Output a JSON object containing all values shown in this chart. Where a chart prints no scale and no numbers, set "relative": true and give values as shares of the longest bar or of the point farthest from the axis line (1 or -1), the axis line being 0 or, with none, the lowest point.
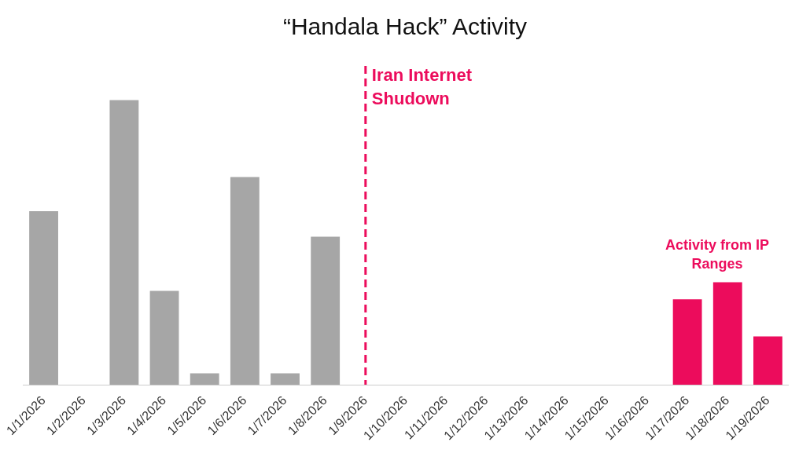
{
  "chart_data": {
    "type": "bar",
    "title": "“Handala Hack” Activity",
    "relative": true,
    "categories": [
      "1/1/2026",
      "1/2/2026",
      "1/3/2026",
      "1/4/2026",
      "1/5/2026",
      "1/6/2026",
      "1/7/2026",
      "1/8/2026",
      "1/9/2026",
      "1/10/2026",
      "1/11/2026",
      "1/12/2026",
      "1/13/2026",
      "1/14/2026",
      "1/15/2026",
      "1/16/2026",
      "1/17/2026",
      "1/18/2026",
      "1/19/2026"
    ],
    "values": [
      0.61,
      0,
      1,
      0.33,
      0.04,
      0.73,
      0.04,
      0.52,
      0,
      0,
      0,
      0,
      0,
      0,
      0,
      0,
      0.3,
      0.36,
      0.17
    ],
    "colors": [
      "#a6a6a6",
      "#a6a6a6",
      "#a6a6a6",
      "#a6a6a6",
      "#a6a6a6",
      "#a6a6a6",
      "#a6a6a6",
      "#a6a6a6",
      "#a6a6a6",
      "#a6a6a6",
      "#a6a6a6",
      "#a6a6a6",
      "#a6a6a6",
      "#a6a6a6",
      "#a6a6a6",
      "#a6a6a6",
      "#ec0c5c",
      "#ec0c5c",
      "#ec0c5c"
    ],
    "ref_lines": [
      {
        "axis": "x",
        "value": "1/9/2026",
        "label": "Iran Internet Shudown",
        "color": "#ec0c5c",
        "line_style": "dashed"
      }
    ],
    "annotations": [
      {
        "text": "Activity from IP Ranges",
        "x": "1/18/2026",
        "y": 0.36
      }
    ]
  }
}
